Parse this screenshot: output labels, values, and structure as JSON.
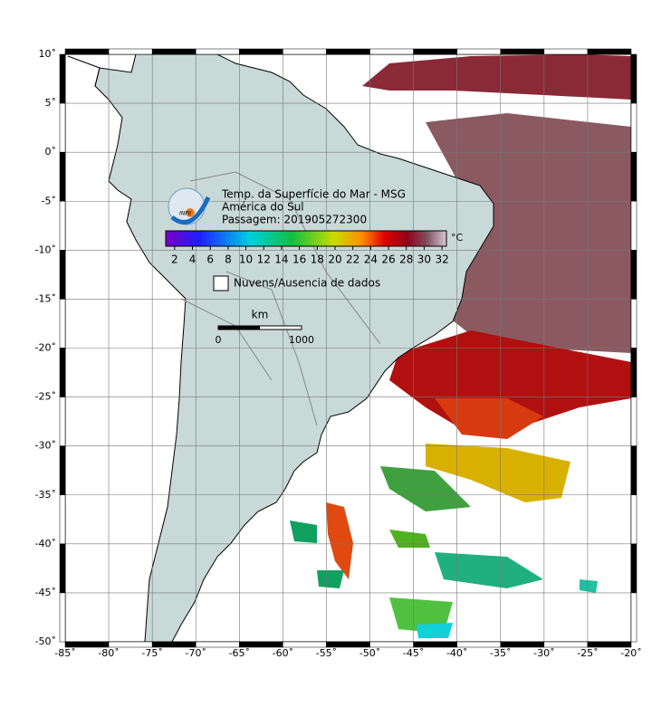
{
  "header": {
    "logo": "INPE",
    "title": "Temp. da Superfície do Mar - MSG",
    "region": "América do Sul",
    "pass": "Passagem: 201905272300"
  },
  "colorbar": {
    "unit": "°C",
    "lim": [
      1,
      32.5
    ],
    "ticks": [
      2,
      4,
      6,
      8,
      10,
      12,
      14,
      16,
      18,
      20,
      22,
      24,
      26,
      28,
      30,
      32
    ]
  },
  "legend": {
    "nodata": "Nuvens/Ausencia de dados"
  },
  "scale_bar": {
    "unit": "km",
    "labels": [
      "0",
      "1000"
    ]
  },
  "map": {
    "xlim": [
      -85,
      -20
    ],
    "ylim": [
      -50,
      10
    ],
    "xticks": [
      {
        "value": -85,
        "label": "-85˚"
      },
      {
        "value": -80,
        "label": "-80˚"
      },
      {
        "value": -75,
        "label": "-75˚"
      },
      {
        "value": -70,
        "label": "-70˚"
      },
      {
        "value": -65,
        "label": "-65˚"
      },
      {
        "value": -60,
        "label": "-60˚"
      },
      {
        "value": -55,
        "label": "-55˚"
      },
      {
        "value": -50,
        "label": "-50˚"
      },
      {
        "value": -45,
        "label": "-45˚"
      },
      {
        "value": -40,
        "label": "-40˚"
      },
      {
        "value": -35,
        "label": "-35˚"
      },
      {
        "value": -30,
        "label": "-30˚"
      },
      {
        "value": -25,
        "label": "-25˚"
      },
      {
        "value": -20,
        "label": "-20˚"
      }
    ],
    "yticks": [
      {
        "value": 10,
        "label": "10˚"
      },
      {
        "value": 5,
        "label": "5˚"
      },
      {
        "value": 0,
        "label": "0˚"
      },
      {
        "value": -5,
        "label": "-5˚"
      },
      {
        "value": -10,
        "label": "-10˚"
      },
      {
        "value": -15,
        "label": "-15˚"
      },
      {
        "value": -20,
        "label": "-20˚"
      },
      {
        "value": -25,
        "label": "-25˚"
      },
      {
        "value": -30,
        "label": "-30˚"
      },
      {
        "value": -35,
        "label": "-35˚"
      },
      {
        "value": -40,
        "label": "-40˚"
      },
      {
        "value": -45,
        "label": "-45˚"
      },
      {
        "value": -50,
        "label": "-50˚"
      }
    ]
  }
}
